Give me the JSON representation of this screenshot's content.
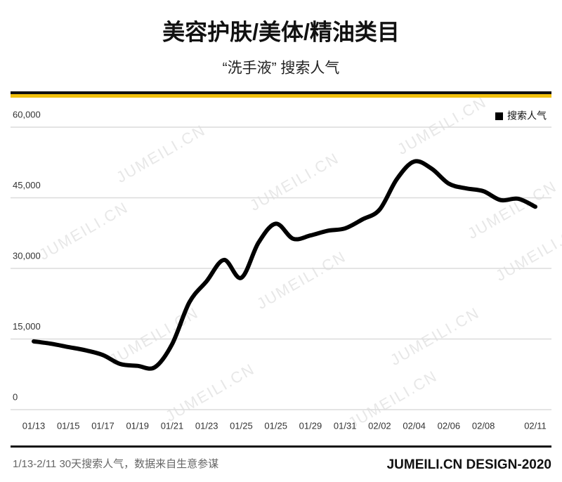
{
  "chart_data": {
    "type": "line",
    "title": "美容护肤/美体/精油类目",
    "subtitle": "“洗手液” 搜索人气",
    "watermark": "JUMEILI.CN",
    "footer_left": "1/13-2/11 30天搜索人气，数据来自生意参谋",
    "footer_right": "JUMEILI.CN DESIGN-2020",
    "categories": [
      "01/13",
      null,
      "01/15",
      null,
      "01/17",
      null,
      "01/19",
      null,
      "01/21",
      null,
      "01/23",
      null,
      "01/25",
      null,
      "01/25",
      null,
      "01/29",
      null,
      "01/31",
      null,
      "02/02",
      null,
      "02/04",
      null,
      "02/06",
      null,
      "02/08",
      null,
      null,
      "02/11"
    ],
    "series": [
      {
        "name": "搜索人气",
        "color": "#000000",
        "values": [
          14500,
          14000,
          13300,
          12600,
          11600,
          9700,
          9300,
          9000,
          13900,
          22800,
          27300,
          31800,
          28000,
          35500,
          39500,
          36300,
          37000,
          38000,
          38500,
          40400,
          42500,
          49000,
          52700,
          51200,
          48000,
          47000,
          46400,
          44500,
          44800,
          43100
        ]
      }
    ],
    "ylim": [
      0,
      60000
    ],
    "yticks": [
      0,
      {
        "value": 15000,
        "label": "15,000"
      },
      {
        "value": 30000,
        "label": "30,000"
      },
      {
        "value": 45000,
        "label": "45,000"
      },
      {
        "value": 60000,
        "label": "60,000"
      }
    ],
    "grid": true,
    "legend": "top-right"
  }
}
